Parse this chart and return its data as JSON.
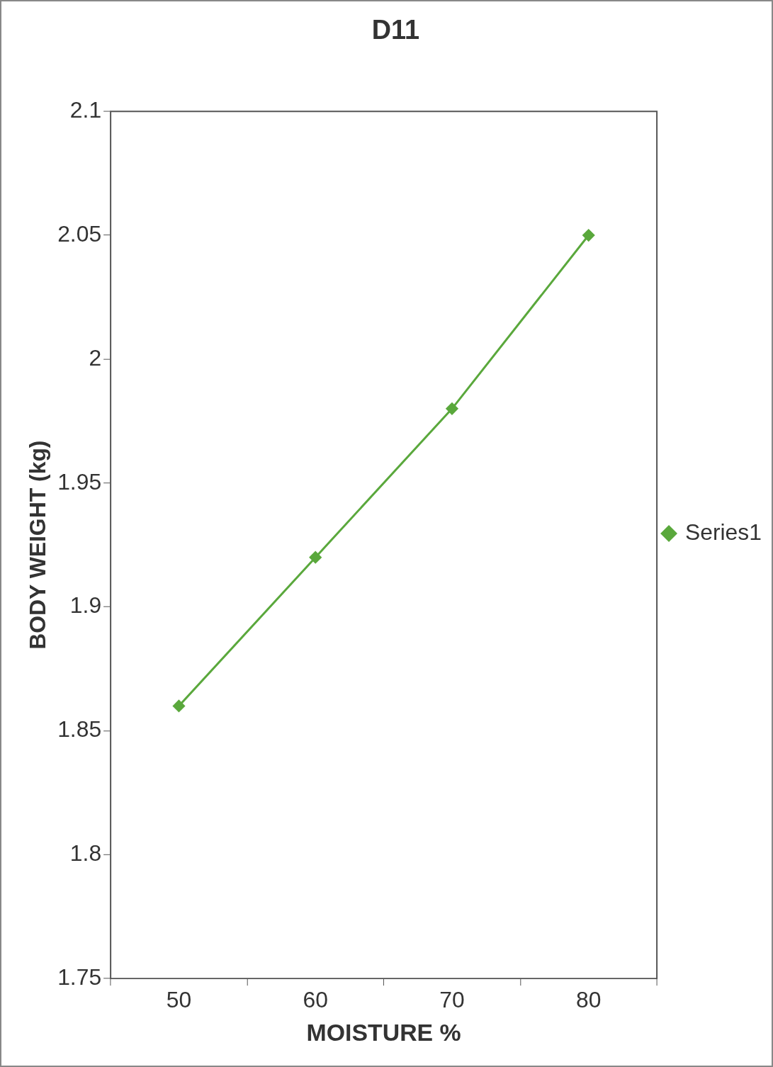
{
  "chart_data": {
    "type": "line",
    "title": "D11",
    "xlabel": "MOISTURE %",
    "ylabel": "BODY WEIGHT (kg)",
    "categories": [
      "50",
      "60",
      "70",
      "80"
    ],
    "series": [
      {
        "name": "Series1",
        "color": "#5aa83c",
        "values": [
          1.86,
          1.92,
          1.98,
          2.05
        ]
      }
    ],
    "ylim": [
      1.75,
      2.1
    ],
    "yticks": [
      1.75,
      1.8,
      1.85,
      1.9,
      1.95,
      2,
      2.05,
      2.1
    ],
    "grid": false,
    "legend": "right",
    "marker": "diamond",
    "line_style": "solid"
  }
}
